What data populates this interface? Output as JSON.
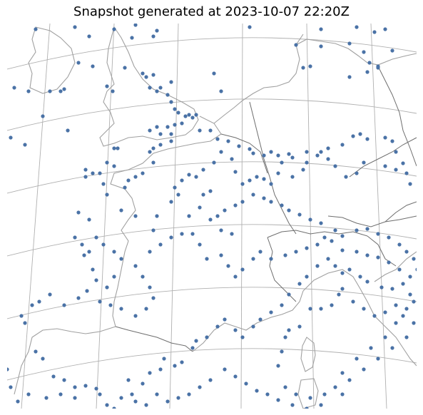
{
  "title": "Snapshot generated at 2023-10-07 22:20Z",
  "colors": {
    "point": "#4a72a6",
    "graticule": "#b0b0b0",
    "coastline": "#a0a0a0",
    "border": "#6e6e6e",
    "background": "#ffffff"
  },
  "map": {
    "projection": "conic",
    "region": "Western Europe",
    "graticule": true,
    "point_count_note": "observation stations shown as dots"
  }
}
